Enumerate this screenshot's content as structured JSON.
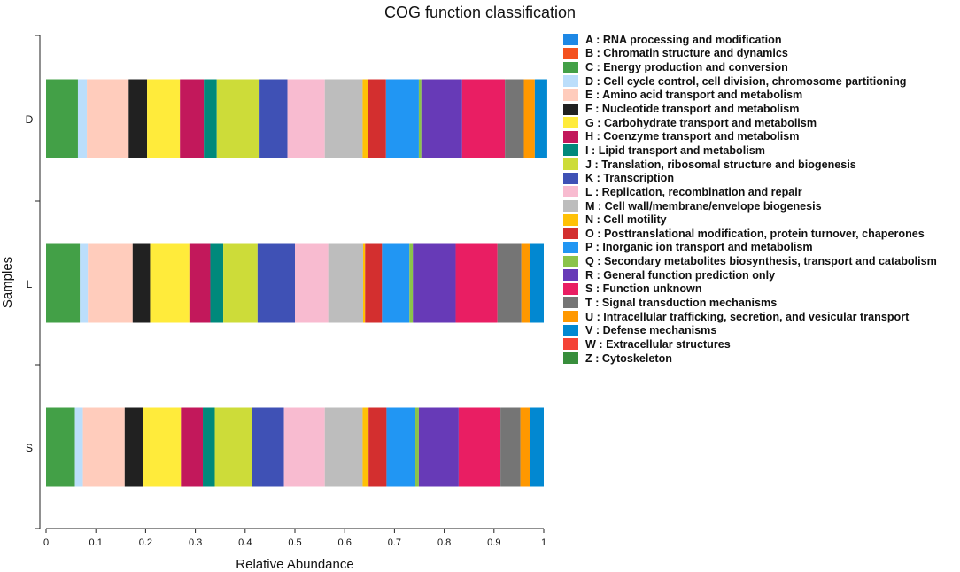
{
  "chart_data": {
    "type": "bar",
    "orientation": "horizontal",
    "stacked": true,
    "title": "COG function classification",
    "xlabel": "Relative Abundance",
    "ylabel": "Samples",
    "xlim": [
      0,
      1
    ],
    "xticks": [
      "0",
      "0.1",
      "0.2",
      "0.3",
      "0.4",
      "0.5",
      "0.6",
      "0.7",
      "0.8",
      "0.9",
      "1"
    ],
    "categories": [
      "D",
      "L",
      "S"
    ],
    "legend_position": "right",
    "series": [
      {
        "name": "A : RNA processing and modification",
        "color": "#1E88E5",
        "values": [
          0.0,
          0.0,
          0.0
        ]
      },
      {
        "name": "B : Chromatin structure and dynamics",
        "color": "#F4511E",
        "values": [
          0.0,
          0.0,
          0.0
        ]
      },
      {
        "name": "C : Energy production and conversion",
        "color": "#43A047",
        "values": [
          0.064,
          0.068,
          0.058
        ]
      },
      {
        "name": "D : Cell cycle control, cell division, chromosome partitioning",
        "color": "#BBDEFB",
        "values": [
          0.018,
          0.016,
          0.016
        ]
      },
      {
        "name": "E : Amino acid transport and metabolism",
        "color": "#FFCCBC",
        "values": [
          0.084,
          0.09,
          0.084
        ]
      },
      {
        "name": "F : Nucleotide transport and metabolism",
        "color": "#212121",
        "values": [
          0.037,
          0.035,
          0.037
        ]
      },
      {
        "name": "G : Carbohydrate transport and metabolism",
        "color": "#FFEB3B",
        "values": [
          0.066,
          0.079,
          0.076
        ]
      },
      {
        "name": "H : Coenzyme transport and metabolism",
        "color": "#C2185B",
        "values": [
          0.048,
          0.042,
          0.044
        ]
      },
      {
        "name": "I : Lipid transport and metabolism",
        "color": "#00897B",
        "values": [
          0.026,
          0.026,
          0.024
        ]
      },
      {
        "name": "J : Translation, ribosomal structure and biogenesis",
        "color": "#CDDC39",
        "values": [
          0.086,
          0.069,
          0.075
        ]
      },
      {
        "name": "K : Transcription",
        "color": "#3F51B5",
        "values": [
          0.056,
          0.075,
          0.064
        ]
      },
      {
        "name": "L : Replication, recombination and repair",
        "color": "#F8BBD0",
        "values": [
          0.075,
          0.067,
          0.082
        ]
      },
      {
        "name": "M : Cell wall/membrane/envelope biogenesis",
        "color": "#BDBDBD",
        "values": [
          0.076,
          0.07,
          0.076
        ]
      },
      {
        "name": "N : Cell motility",
        "color": "#FFC107",
        "values": [
          0.01,
          0.004,
          0.012
        ]
      },
      {
        "name": "O : Posttranslational modification, protein turnover, chaperones",
        "color": "#D32F2F",
        "values": [
          0.037,
          0.034,
          0.036
        ]
      },
      {
        "name": "P : Inorganic ion transport and metabolism",
        "color": "#2196F3",
        "values": [
          0.066,
          0.055,
          0.058
        ]
      },
      {
        "name": "Q : Secondary metabolites biosynthesis, transport and catabolism",
        "color": "#8BC34A",
        "values": [
          0.005,
          0.007,
          0.007
        ]
      },
      {
        "name": "R : General function prediction only",
        "color": "#673AB7",
        "values": [
          0.082,
          0.086,
          0.08
        ]
      },
      {
        "name": "S : Function unknown",
        "color": "#E91E63",
        "values": [
          0.086,
          0.084,
          0.084
        ]
      },
      {
        "name": "T : Signal transduction mechanisms",
        "color": "#757575",
        "values": [
          0.038,
          0.048,
          0.04
        ]
      },
      {
        "name": "U : Intracellular trafficking, secretion, and vesicular transport",
        "color": "#FF9800",
        "values": [
          0.022,
          0.018,
          0.02
        ]
      },
      {
        "name": "V : Defense mechanisms",
        "color": "#0288D1",
        "values": [
          0.025,
          0.027,
          0.027
        ]
      },
      {
        "name": "W : Extracellular structures",
        "color": "#F44336",
        "values": [
          0.0,
          0.0,
          0.0
        ]
      },
      {
        "name": "Z : Cytoskeleton",
        "color": "#388E3C",
        "values": [
          0.0,
          0.0,
          0.0
        ]
      }
    ]
  }
}
